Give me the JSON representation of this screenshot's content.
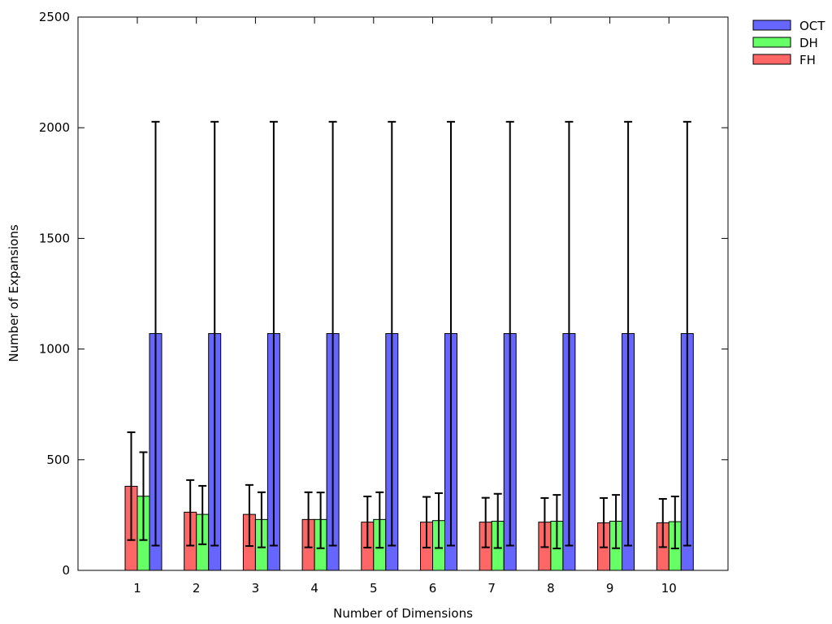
{
  "chart_data": {
    "type": "bar",
    "title": "",
    "xlabel": "Number of Dimensions",
    "ylabel": "Number of Expansions",
    "ylim": [
      0,
      2500
    ],
    "yticks": [
      0,
      500,
      1000,
      1500,
      2000,
      2500
    ],
    "categories": [
      "1",
      "2",
      "3",
      "4",
      "5",
      "6",
      "7",
      "8",
      "9",
      "10"
    ],
    "grid": false,
    "legend_position": "outside-top-right",
    "error_bars": true,
    "series": [
      {
        "name": "FH",
        "color": "#ff6666",
        "values": [
          380,
          263,
          253,
          230,
          218,
          218,
          218,
          218,
          215,
          215
        ],
        "error_low": [
          137,
          112,
          110,
          104,
          103,
          103,
          104,
          105,
          104,
          105
        ],
        "error_high": [
          624,
          408,
          386,
          353,
          334,
          332,
          328,
          327,
          327,
          323
        ]
      },
      {
        "name": "DH",
        "color": "#66ff66",
        "values": [
          335,
          253,
          230,
          230,
          230,
          225,
          222,
          222,
          222,
          220
        ],
        "error_low": [
          137,
          118,
          104,
          100,
          102,
          101,
          101,
          99,
          100,
          99
        ],
        "error_high": [
          534,
          382,
          353,
          352,
          353,
          349,
          346,
          341,
          341,
          334
        ]
      },
      {
        "name": "OCT",
        "color": "#6666ff",
        "values": [
          1070,
          1070,
          1070,
          1070,
          1070,
          1070,
          1070,
          1070,
          1070,
          1070
        ],
        "error_low": [
          112,
          112,
          112,
          112,
          112,
          112,
          112,
          112,
          112,
          112
        ],
        "error_high": [
          2027,
          2027,
          2027,
          2027,
          2027,
          2027,
          2027,
          2027,
          2027,
          2027
        ]
      }
    ],
    "legend_order": [
      "OCT",
      "DH",
      "FH"
    ]
  }
}
